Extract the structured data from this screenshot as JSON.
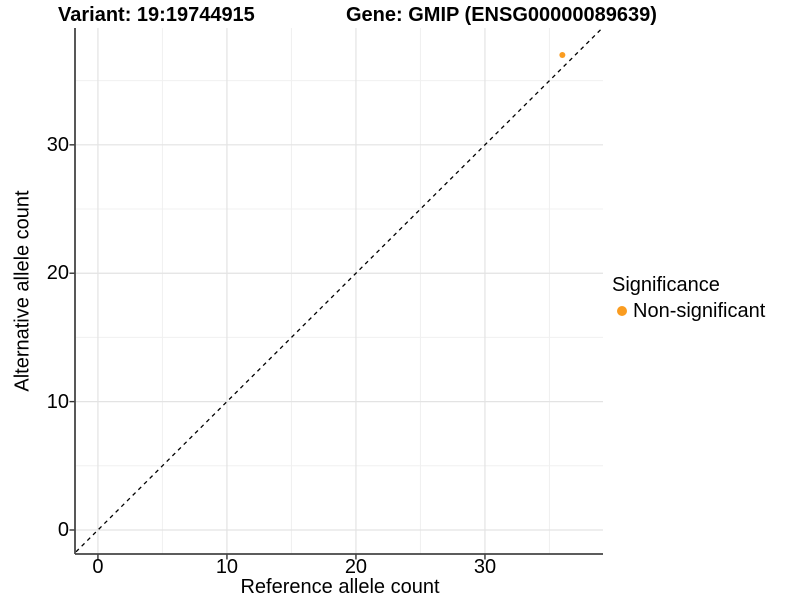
{
  "chart_data": {
    "type": "scatter",
    "title_left": "Variant: 19:19744915",
    "title_right": "Gene: GMIP (ENSG00000089639)",
    "xlabel": "Reference allele count",
    "ylabel": "Alternative allele count",
    "xlim": [
      -1.7,
      39.15
    ],
    "ylim": [
      -1.87,
      39.1
    ],
    "x_ticks": [
      0,
      10,
      20,
      30
    ],
    "y_ticks": [
      0,
      10,
      20,
      30
    ],
    "x_minor_ticks": [
      5,
      15,
      25,
      35
    ],
    "y_minor_ticks": [
      5,
      15,
      25,
      35
    ],
    "grid": "major+minor",
    "identity_line": {
      "style": "dashed",
      "color": "#000000",
      "slope": 1,
      "intercept": 0
    },
    "series": [
      {
        "name": "Non-significant",
        "color": "#FA9C20",
        "point_radius": 3,
        "points": [
          {
            "x": 36,
            "y": 37
          }
        ]
      }
    ],
    "legend": {
      "title": "Significance",
      "position": "right",
      "items": [
        {
          "label": "Non-significant",
          "color": "#FA9C20"
        }
      ]
    }
  },
  "style": {
    "background": "#FFFFFF",
    "grid_major_color": "#E3E3E3",
    "grid_minor_color": "#F0F0F0",
    "axis_line_color": "#454545",
    "tick_mark_color": "#333333",
    "text_color": "#000000"
  }
}
